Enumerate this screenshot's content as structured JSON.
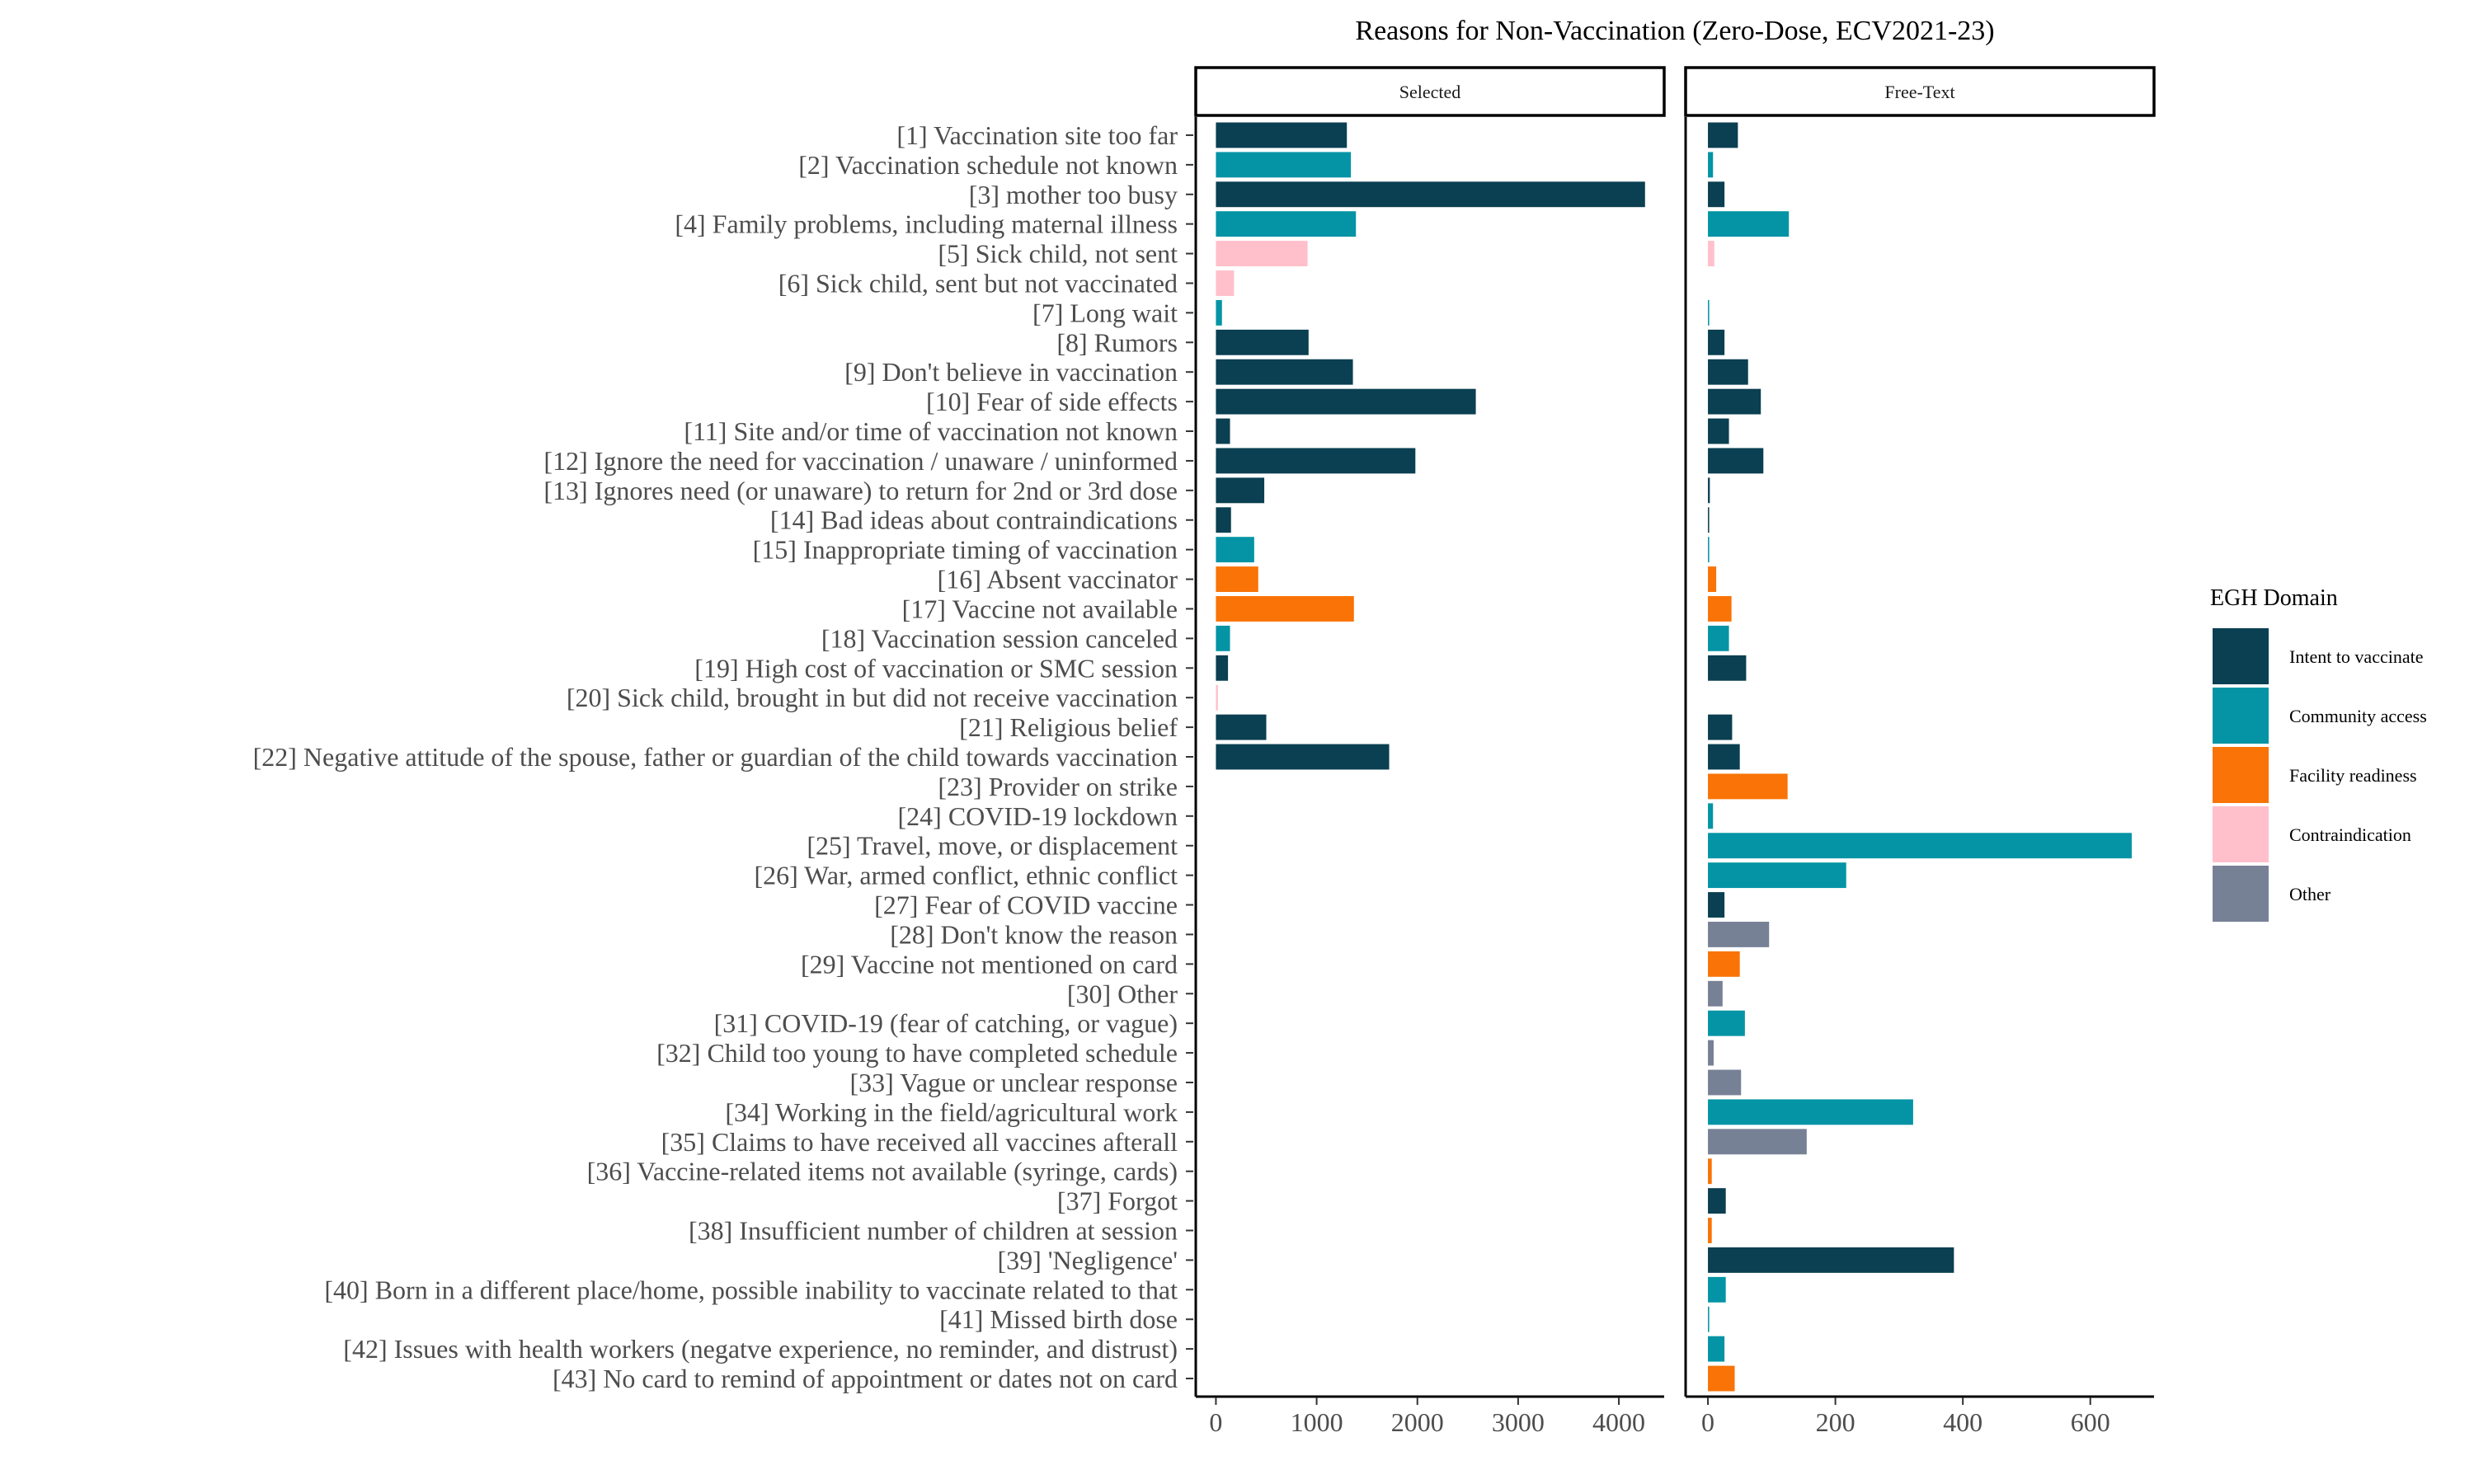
{
  "chart_data": {
    "type": "bar",
    "orientation": "horizontal",
    "title": "Reasons for Non-Vaccination (Zero-Dose, ECV2021-23)",
    "categories": [
      "[1] Vaccination site too far",
      "[2] Vaccination schedule not known",
      "[3] mother too busy",
      "[4] Family problems, including maternal illness",
      "[5] Sick child, not sent",
      "[6] Sick child, sent but not vaccinated",
      "[7] Long wait",
      "[8] Rumors",
      "[9] Don't believe in vaccination",
      "[10] Fear of side effects",
      "[11] Site and/or time of vaccination not known",
      "[12] Ignore the need for vaccination  / unaware / uninformed",
      "[13] Ignores need (or unaware) to return for 2nd or 3rd dose",
      "[14] Bad ideas about contraindications",
      "[15] Inappropriate timing of vaccination",
      "[16] Absent vaccinator",
      "[17] Vaccine not available",
      "[18] Vaccination session canceled",
      "[19] High cost of vaccination or SMC session",
      "[20] Sick child, brought in but did not receive vaccination",
      "[21] Religious belief",
      "[22] Negative attitude of the spouse, father or guardian of the child towards vaccination",
      "[23] Provider on strike",
      "[24] COVID-19 lockdown",
      "[25] Travel, move, or displacement",
      "[26] War, armed conflict, ethnic conflict",
      "[27] Fear of COVID vaccine",
      "[28] Don't know the reason",
      "[29] Vaccine not mentioned on card",
      "[30] Other",
      "[31] COVID-19 (fear of catching, or vague)",
      "[32] Child too young to have completed schedule",
      "[33] Vague or unclear response",
      "[34] Working in the field/agricultural work",
      "[35] Claims to have received all vaccines afterall",
      "[36] Vaccine-related items not available (syringe, cards)",
      "[37] Forgot",
      "[38] Insufficient number of children at session",
      "[39] 'Negligence'",
      "[40] Born in a different place/home, possible inability to vaccinate related to that",
      "[41] Missed birth dose",
      "[42] Issues with health workers (negatve experience, no reminder, and distrust)",
      "[43] No card to remind of appointment or dates not on card"
    ],
    "domains": [
      "Intent to vaccinate",
      "Community access",
      "Intent to vaccinate",
      "Community access",
      "Contraindication",
      "Contraindication",
      "Community access",
      "Intent to vaccinate",
      "Intent to vaccinate",
      "Intent to vaccinate",
      "Intent to vaccinate",
      "Intent to vaccinate",
      "Intent to vaccinate",
      "Intent to vaccinate",
      "Community access",
      "Facility readiness",
      "Facility readiness",
      "Community access",
      "Intent to vaccinate",
      "Contraindication",
      "Intent to vaccinate",
      "Intent to vaccinate",
      "Facility readiness",
      "Community access",
      "Community access",
      "Community access",
      "Intent to vaccinate",
      "Other",
      "Facility readiness",
      "Other",
      "Community access",
      "Other",
      "Other",
      "Community access",
      "Other",
      "Facility readiness",
      "Intent to vaccinate",
      "Facility readiness",
      "Intent to vaccinate",
      "Community access",
      "Community access",
      "Community access",
      "Facility readiness"
    ],
    "panels": [
      {
        "name": "Selected",
        "xlim": [
          -200,
          4450
        ],
        "ticks": [
          0,
          1000,
          2000,
          3000,
          4000
        ],
        "values": [
          1300,
          1340,
          4260,
          1390,
          910,
          180,
          60,
          920,
          1360,
          2580,
          140,
          1980,
          480,
          150,
          380,
          420,
          1370,
          140,
          120,
          20,
          500,
          1720,
          null,
          null,
          null,
          null,
          null,
          null,
          null,
          null,
          null,
          null,
          null,
          null,
          null,
          null,
          null,
          null,
          null,
          null,
          null,
          null,
          null
        ]
      },
      {
        "name": "Free-Text",
        "xlim": [
          -35,
          700
        ],
        "ticks": [
          0,
          200,
          400,
          600
        ],
        "values": [
          47,
          8,
          26,
          127,
          10,
          null,
          2,
          26,
          63,
          83,
          33,
          87,
          3,
          2,
          2,
          13,
          37,
          33,
          60,
          null,
          38,
          50,
          125,
          8,
          665,
          217,
          26,
          96,
          50,
          23,
          58,
          9,
          52,
          322,
          155,
          6,
          28,
          6,
          386,
          28,
          2,
          26,
          42
        ]
      }
    ],
    "legend": {
      "title": "EGH Domain",
      "placement": "right",
      "items": [
        {
          "label": "Intent to vaccinate",
          "color": "#0b3f52"
        },
        {
          "label": "Community access",
          "color": "#0494a5"
        },
        {
          "label": "Facility readiness",
          "color": "#f97306"
        },
        {
          "label": "Contraindication",
          "color": "#ffc0cb"
        },
        {
          "label": "Other",
          "color": "#778196"
        }
      ]
    },
    "grid": false
  }
}
